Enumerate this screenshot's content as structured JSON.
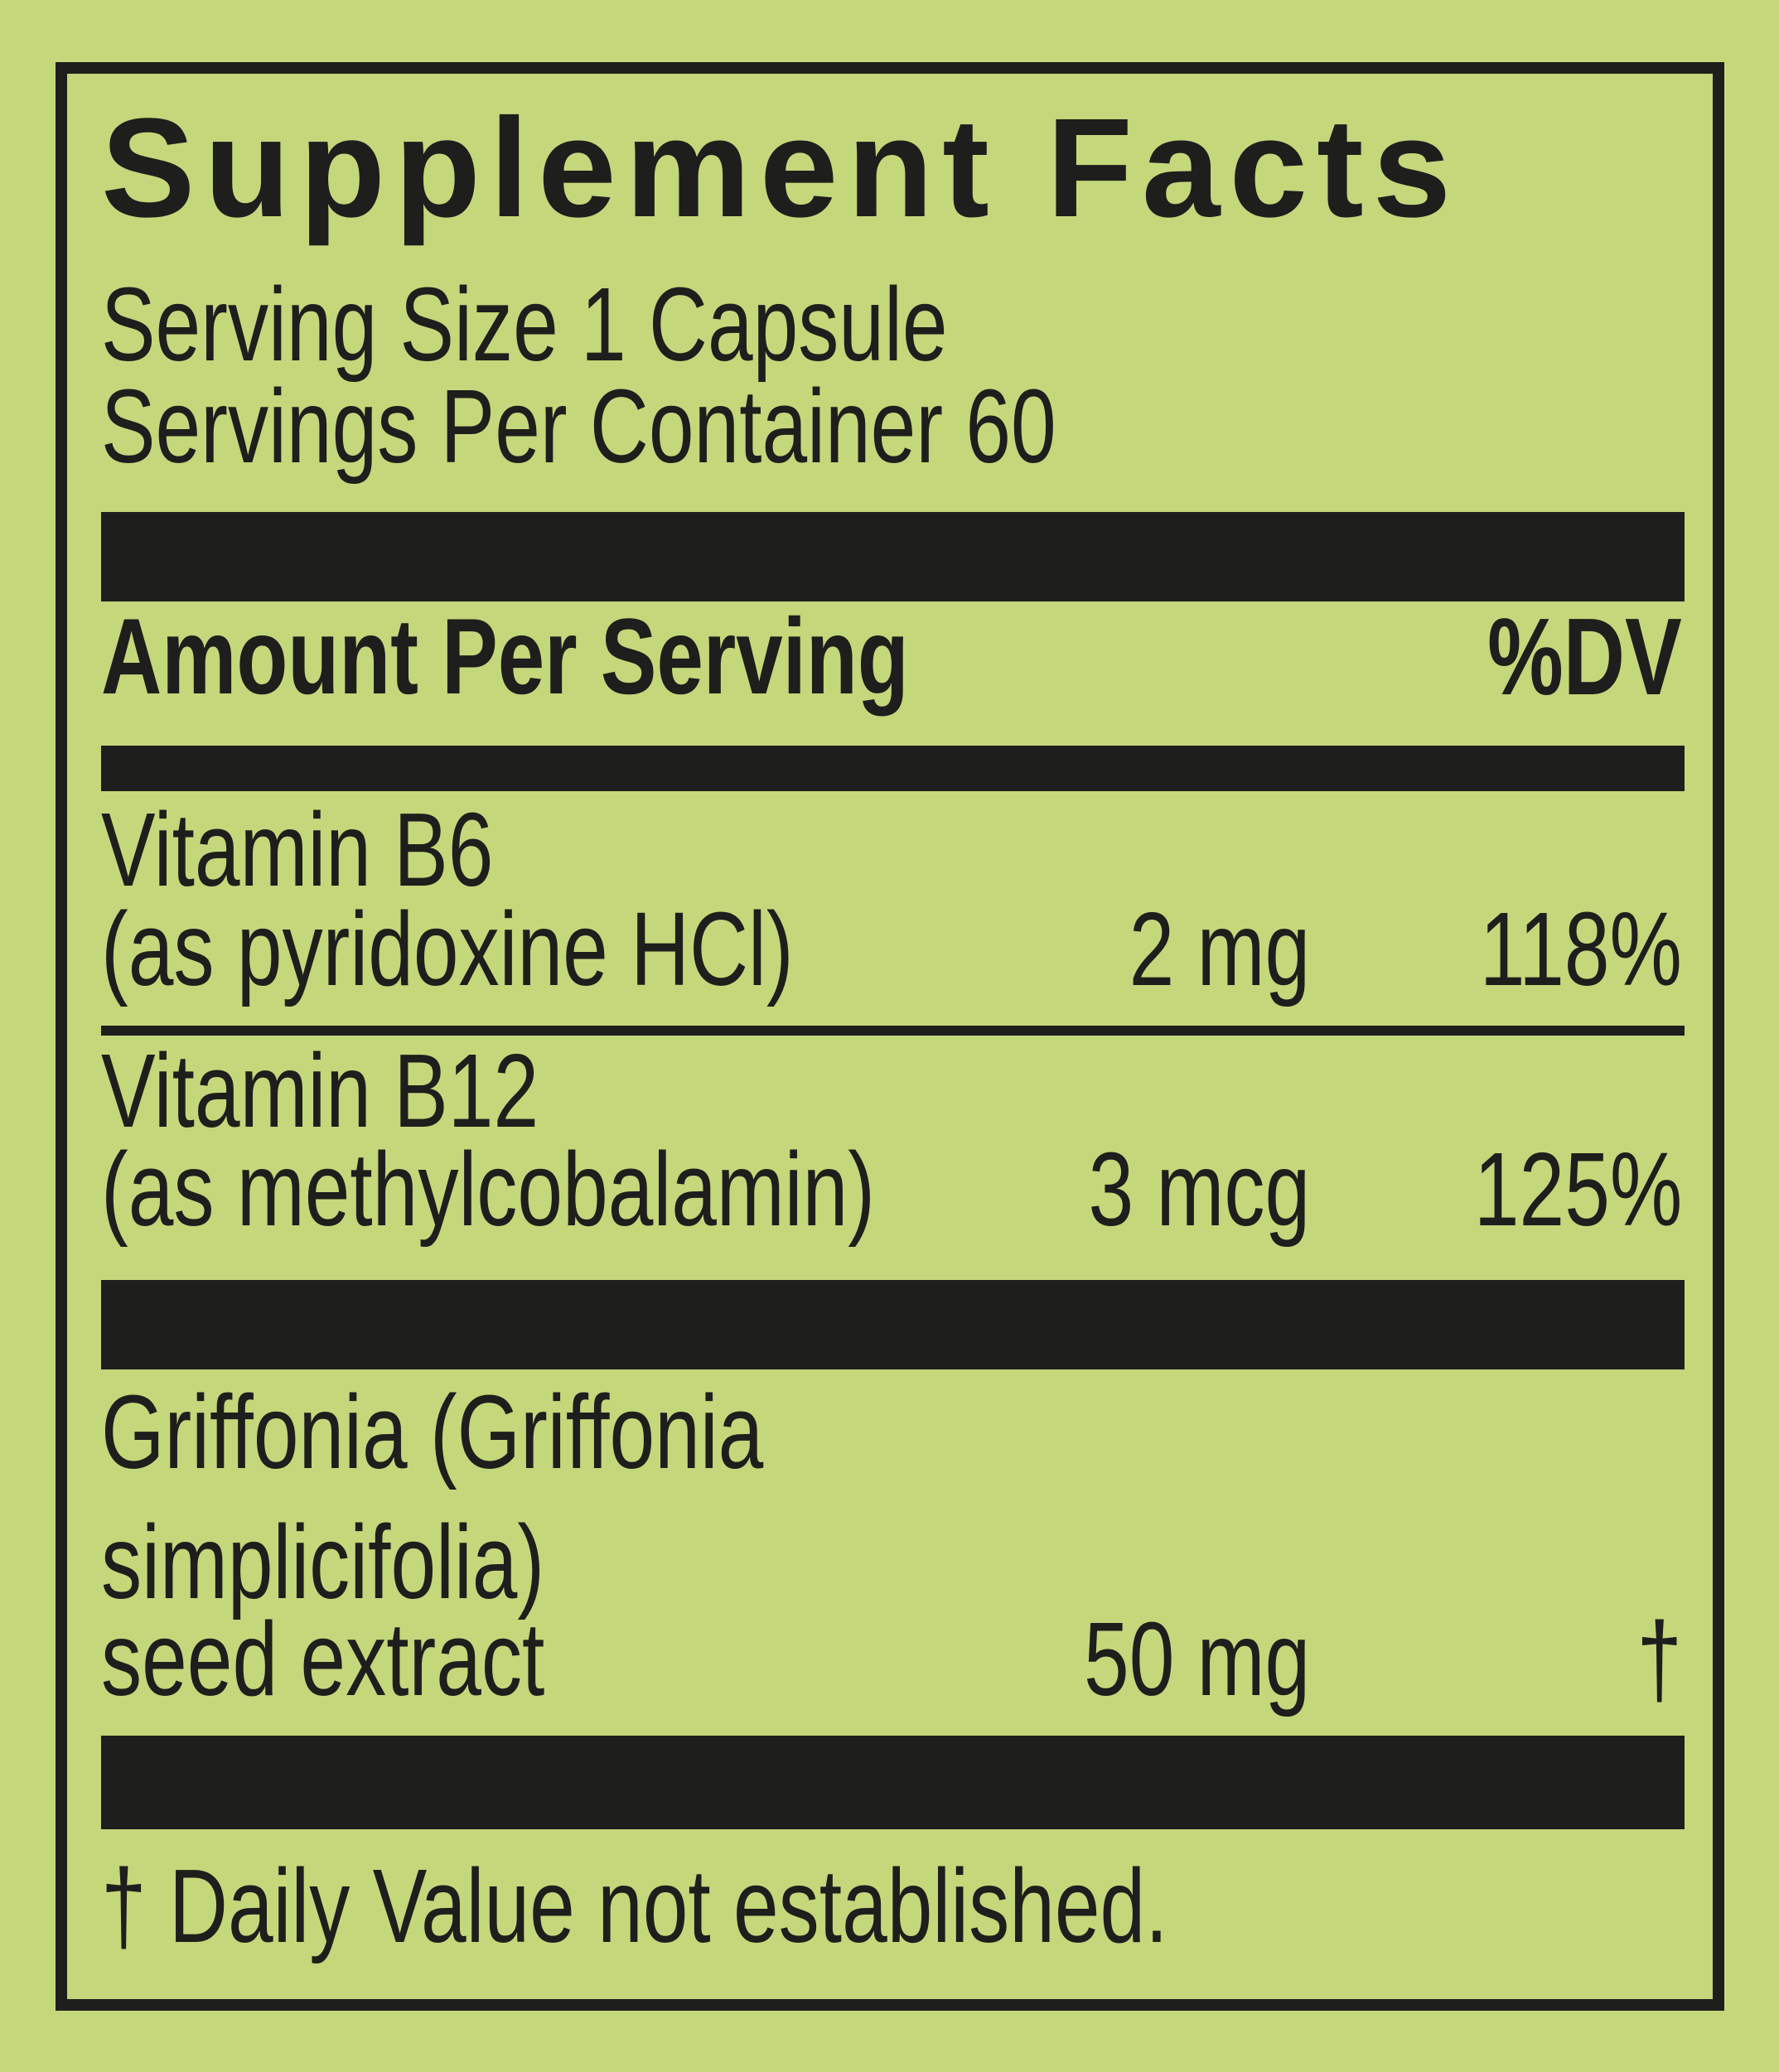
{
  "colors": {
    "background": "#c5d77b",
    "ink": "#1e1e1c"
  },
  "panel": {
    "title": "Supplement Facts",
    "serving_size": "Serving Size 1 Capsule",
    "servings_per_container": "Servings Per Container 60",
    "columns": {
      "amount_header": "Amount Per Serving",
      "dv_header": "%DV"
    },
    "rows": [
      {
        "name_line1": "Vitamin B6",
        "name_line2": "(as pyridoxine HCl)",
        "amount": "2 mg",
        "dv": "118%"
      },
      {
        "name_line1": "Vitamin B12",
        "name_line2": "(as methylcobalamin)",
        "amount": "3 mcg",
        "dv": "125%"
      },
      {
        "name_line1": "Griffonia (Griffonia",
        "name_line2": "simplicifolia)",
        "name_line3": "seed extract",
        "amount": "50 mg",
        "dv": "†"
      }
    ],
    "footnote": "† Daily Value not established."
  }
}
